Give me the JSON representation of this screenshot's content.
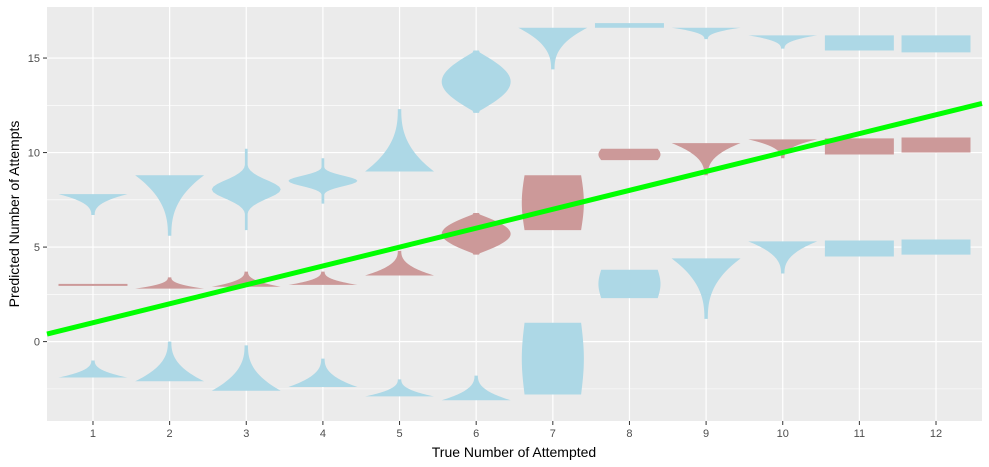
{
  "chart_data": {
    "type": "violin",
    "title": "",
    "xlabel": "True Number of Attempted",
    "ylabel": "Predicted Number of Attempts",
    "categories": [
      "1",
      "2",
      "3",
      "4",
      "5",
      "6",
      "7",
      "8",
      "9",
      "10",
      "11",
      "12"
    ],
    "x_ticks": [
      "1",
      "2",
      "3",
      "4",
      "5",
      "6",
      "7",
      "8",
      "9",
      "10",
      "11",
      "12"
    ],
    "y_ticks": [
      0,
      5,
      10,
      15
    ],
    "xlim": [
      0.4,
      12.6
    ],
    "ylim": [
      -4.2,
      17.7
    ],
    "grid": true,
    "legend": "none",
    "colors": {
      "panel": "#EBEBEB",
      "grid": "#FFFFFF",
      "blue": "#ADD8E6",
      "red": "#CC9999",
      "line": "#00FF00",
      "tick_text": "#4D4D4D"
    },
    "trend_line": {
      "intercept": 0,
      "slope": 1,
      "color": "#00FF00"
    },
    "violins": [
      {
        "x": 1,
        "color": "blue",
        "ymin": 6.7,
        "ymax": 7.8,
        "width": 0.45,
        "shape": "topheavy"
      },
      {
        "x": 1,
        "color": "red",
        "ymin": 2.9,
        "ymax": 3.0,
        "width": 0.45,
        "shape": "flat"
      },
      {
        "x": 1,
        "color": "blue",
        "ymin": -1.9,
        "ymax": -1.0,
        "width": 0.45,
        "shape": "bottomheavy"
      },
      {
        "x": 2,
        "color": "blue",
        "ymin": 5.6,
        "ymax": 8.8,
        "width": 0.45,
        "shape": "topheavy"
      },
      {
        "x": 2,
        "color": "red",
        "ymin": 2.8,
        "ymax": 3.4,
        "width": 0.45,
        "shape": "bottomheavy"
      },
      {
        "x": 2,
        "color": "blue",
        "ymin": -2.1,
        "ymax": 0.0,
        "width": 0.45,
        "shape": "bottomheavy"
      },
      {
        "x": 3,
        "color": "blue",
        "ymin": 5.9,
        "ymax": 10.2,
        "width": 0.45,
        "shape": "spike"
      },
      {
        "x": 3,
        "color": "red",
        "ymin": 2.9,
        "ymax": 3.7,
        "width": 0.45,
        "shape": "bottomheavy"
      },
      {
        "x": 3,
        "color": "blue",
        "ymin": -2.6,
        "ymax": -0.2,
        "width": 0.45,
        "shape": "bottomheavy"
      },
      {
        "x": 4,
        "color": "blue",
        "ymin": 7.3,
        "ymax": 9.7,
        "width": 0.45,
        "shape": "spike"
      },
      {
        "x": 4,
        "color": "red",
        "ymin": 3.0,
        "ymax": 3.7,
        "width": 0.45,
        "shape": "bottomheavy"
      },
      {
        "x": 4,
        "color": "blue",
        "ymin": -2.4,
        "ymax": -0.9,
        "width": 0.45,
        "shape": "bottomheavy"
      },
      {
        "x": 5,
        "color": "blue",
        "ymin": 9.0,
        "ymax": 12.3,
        "width": 0.45,
        "shape": "bottomheavy"
      },
      {
        "x": 5,
        "color": "red",
        "ymin": 3.5,
        "ymax": 4.8,
        "width": 0.45,
        "shape": "bottomheavy"
      },
      {
        "x": 5,
        "color": "blue",
        "ymin": -2.9,
        "ymax": -2.0,
        "width": 0.45,
        "shape": "bottomheavy"
      },
      {
        "x": 6,
        "color": "blue",
        "ymin": 12.1,
        "ymax": 15.4,
        "width": 0.45,
        "shape": "diamond"
      },
      {
        "x": 6,
        "color": "red",
        "ymin": 4.6,
        "ymax": 6.8,
        "width": 0.45,
        "shape": "diamond"
      },
      {
        "x": 6,
        "color": "blue",
        "ymin": -3.1,
        "ymax": -1.8,
        "width": 0.45,
        "shape": "bottomheavy"
      },
      {
        "x": 7,
        "color": "blue",
        "ymin": 14.4,
        "ymax": 16.6,
        "width": 0.45,
        "shape": "topheavy"
      },
      {
        "x": 7,
        "color": "red",
        "ymin": 5.9,
        "ymax": 8.8,
        "width": 0.45,
        "shape": "block"
      },
      {
        "x": 7,
        "color": "blue",
        "ymin": -2.8,
        "ymax": 1.0,
        "width": 0.45,
        "shape": "block"
      },
      {
        "x": 8,
        "color": "blue",
        "ymin": 16.6,
        "ymax": 16.85,
        "width": 0.45,
        "shape": "flat"
      },
      {
        "x": 8,
        "color": "red",
        "ymin": 9.6,
        "ymax": 10.2,
        "width": 0.45,
        "shape": "block"
      },
      {
        "x": 8,
        "color": "blue",
        "ymin": 2.3,
        "ymax": 3.8,
        "width": 0.45,
        "shape": "block"
      },
      {
        "x": 9,
        "color": "blue",
        "ymin": 16.0,
        "ymax": 16.6,
        "width": 0.45,
        "shape": "topheavy"
      },
      {
        "x": 9,
        "color": "red",
        "ymin": 8.8,
        "ymax": 10.5,
        "width": 0.45,
        "shape": "topheavy"
      },
      {
        "x": 9,
        "color": "blue",
        "ymin": 1.2,
        "ymax": 4.4,
        "width": 0.45,
        "shape": "topheavy"
      },
      {
        "x": 10,
        "color": "blue",
        "ymin": 15.5,
        "ymax": 16.2,
        "width": 0.45,
        "shape": "topheavy"
      },
      {
        "x": 10,
        "color": "red",
        "ymin": 9.7,
        "ymax": 10.7,
        "width": 0.45,
        "shape": "topheavy"
      },
      {
        "x": 10,
        "color": "blue",
        "ymin": 3.6,
        "ymax": 5.3,
        "width": 0.45,
        "shape": "topheavy"
      },
      {
        "x": 11,
        "color": "blue",
        "ymin": 15.4,
        "ymax": 16.2,
        "width": 0.45,
        "shape": "flat"
      },
      {
        "x": 11,
        "color": "red",
        "ymin": 9.9,
        "ymax": 10.75,
        "width": 0.45,
        "shape": "flat"
      },
      {
        "x": 11,
        "color": "blue",
        "ymin": 4.5,
        "ymax": 5.35,
        "width": 0.45,
        "shape": "flat"
      },
      {
        "x": 12,
        "color": "blue",
        "ymin": 15.3,
        "ymax": 16.2,
        "width": 0.45,
        "shape": "flat"
      },
      {
        "x": 12,
        "color": "red",
        "ymin": 10.0,
        "ymax": 10.8,
        "width": 0.45,
        "shape": "flat"
      },
      {
        "x": 12,
        "color": "blue",
        "ymin": 4.6,
        "ymax": 5.4,
        "width": 0.45,
        "shape": "flat"
      }
    ]
  }
}
